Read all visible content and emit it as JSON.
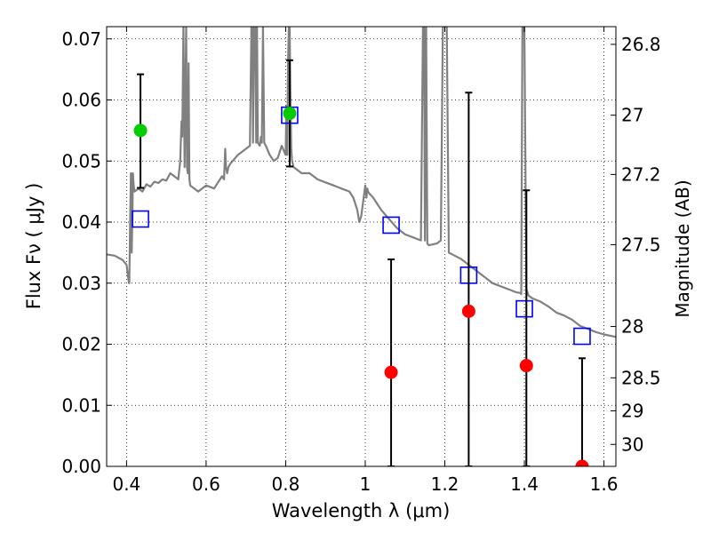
{
  "chart_data": {
    "type": "scatter",
    "xlabel": "Wavelength  λ (μm)",
    "ylabel": "Flux  Fν  ( μJy )",
    "y2label": "Magnitude (AB)",
    "xlim": [
      0.35,
      1.63
    ],
    "ylim": [
      0.0,
      0.072
    ],
    "grid": true,
    "x_ticks": [
      "0.4",
      "0.6",
      "0.8",
      "1",
      "1.2",
      "1.4",
      "1.6"
    ],
    "x_tick_values": [
      0.4,
      0.6,
      0.8,
      1.0,
      1.2,
      1.4,
      1.6
    ],
    "y_ticks": [
      "0.00",
      "0.01",
      "0.02",
      "0.03",
      "0.04",
      "0.05",
      "0.06",
      "0.07"
    ],
    "y_tick_values": [
      0.0,
      0.01,
      0.02,
      0.03,
      0.04,
      0.05,
      0.06,
      0.07
    ],
    "y2_ticks": [
      {
        "label": "26.8",
        "flux": 0.0691
      },
      {
        "label": "27",
        "flux": 0.0575
      },
      {
        "label": "27.2",
        "flux": 0.0478
      },
      {
        "label": "27.5",
        "flux": 0.0363
      },
      {
        "label": "28",
        "flux": 0.0229
      },
      {
        "label": "28.5",
        "flux": 0.0145
      },
      {
        "label": "29",
        "flux": 0.0091
      },
      {
        "label": "30",
        "flux": 0.0036
      }
    ],
    "series": [
      {
        "style": "line",
        "color": "#808080",
        "x": [
          0.35,
          0.37,
          0.39,
          0.4,
          0.405,
          0.407,
          0.409,
          0.411,
          0.413,
          0.415,
          0.416,
          0.418,
          0.42,
          0.43,
          0.44,
          0.45,
          0.46,
          0.47,
          0.48,
          0.49,
          0.5,
          0.51,
          0.52,
          0.53,
          0.535,
          0.538,
          0.54,
          0.543,
          0.546,
          0.55,
          0.552,
          0.554,
          0.556,
          0.558,
          0.56,
          0.58,
          0.6,
          0.62,
          0.64,
          0.645,
          0.648,
          0.65,
          0.653,
          0.656,
          0.66,
          0.68,
          0.7,
          0.71,
          0.714,
          0.716,
          0.718,
          0.72,
          0.723,
          0.726,
          0.728,
          0.73,
          0.735,
          0.738,
          0.74,
          0.743,
          0.746,
          0.75,
          0.76,
          0.77,
          0.78,
          0.79,
          0.8,
          0.802,
          0.804,
          0.806,
          0.808,
          0.81,
          0.812,
          0.814,
          0.816,
          0.82,
          0.84,
          0.86,
          0.88,
          0.9,
          0.92,
          0.94,
          0.96,
          0.97,
          0.975,
          0.98,
          0.985,
          0.99,
          1.0,
          1.003,
          1.005,
          1.007,
          1.01,
          1.02,
          1.04,
          1.06,
          1.08,
          1.1,
          1.12,
          1.14,
          1.145,
          1.148,
          1.15,
          1.153,
          1.156,
          1.16,
          1.18,
          1.19,
          1.195,
          1.2,
          1.205,
          1.21,
          1.24,
          1.26,
          1.28,
          1.3,
          1.32,
          1.34,
          1.36,
          1.38,
          1.39,
          1.392,
          1.395,
          1.397,
          1.4,
          1.405,
          1.41,
          1.42,
          1.44,
          1.46,
          1.48,
          1.5,
          1.52,
          1.54,
          1.56,
          1.58,
          1.6,
          1.63
        ],
        "y": [
          0.0347,
          0.0345,
          0.0338,
          0.033,
          0.0305,
          0.03,
          0.04,
          0.048,
          0.035,
          0.042,
          0.048,
          0.046,
          0.045,
          0.0455,
          0.045,
          0.0462,
          0.0458,
          0.0466,
          0.0464,
          0.047,
          0.0468,
          0.048,
          0.0475,
          0.047,
          0.05,
          0.0565,
          0.054,
          0.072,
          0.049,
          0.072,
          0.049,
          0.048,
          0.066,
          0.047,
          0.046,
          0.045,
          0.046,
          0.0455,
          0.0475,
          0.047,
          0.052,
          0.049,
          0.048,
          0.049,
          0.0495,
          0.051,
          0.052,
          0.0525,
          0.072,
          0.072,
          0.053,
          0.072,
          0.072,
          0.053,
          0.072,
          0.053,
          0.0525,
          0.054,
          0.053,
          0.072,
          0.053,
          0.0525,
          0.051,
          0.05,
          0.0505,
          0.0525,
          0.051,
          0.059,
          0.051,
          0.066,
          0.072,
          0.072,
          0.061,
          0.052,
          0.05,
          0.049,
          0.048,
          0.048,
          0.047,
          0.0465,
          0.046,
          0.0455,
          0.045,
          0.044,
          0.043,
          0.042,
          0.04,
          0.041,
          0.046,
          0.044,
          0.0455,
          0.045,
          0.0447,
          0.044,
          0.042,
          0.0405,
          0.039,
          0.038,
          0.0375,
          0.037,
          0.072,
          0.072,
          0.037,
          0.072,
          0.0365,
          0.0362,
          0.0365,
          0.037,
          0.072,
          0.072,
          0.072,
          0.035,
          0.034,
          0.033,
          0.032,
          0.031,
          0.03,
          0.0295,
          0.029,
          0.0285,
          0.0284,
          0.0282,
          0.072,
          0.071,
          0.072,
          0.029,
          0.028,
          0.0275,
          0.027,
          0.0262,
          0.0252,
          0.0247,
          0.024,
          0.023,
          0.0225,
          0.022,
          0.0216,
          0.0212
        ]
      },
      {
        "style": "open-square",
        "color": "#0000ff",
        "x": [
          0.435,
          0.81,
          1.065,
          1.26,
          1.4,
          1.545
        ],
        "y": [
          0.0405,
          0.0575,
          0.0395,
          0.0313,
          0.0258,
          0.0213
        ]
      },
      {
        "style": "filled-circle-errorbar",
        "color": "#00cc00",
        "x": [
          0.435,
          0.81
        ],
        "y": [
          0.055,
          0.0578
        ],
        "err_low": [
          0.0094,
          0.0087
        ],
        "err_high": [
          0.0092,
          0.0087
        ]
      },
      {
        "style": "filled-circle-errorbar",
        "color": "#ff0000",
        "x": [
          1.065,
          1.26,
          1.405,
          1.545
        ],
        "y": [
          0.0154,
          0.0254,
          0.0165,
          0.0
        ],
        "err_low": [
          0.0154,
          0.0254,
          0.0165,
          0.0
        ],
        "err_high": [
          0.0185,
          0.0358,
          0.0287,
          0.0177
        ]
      }
    ]
  }
}
